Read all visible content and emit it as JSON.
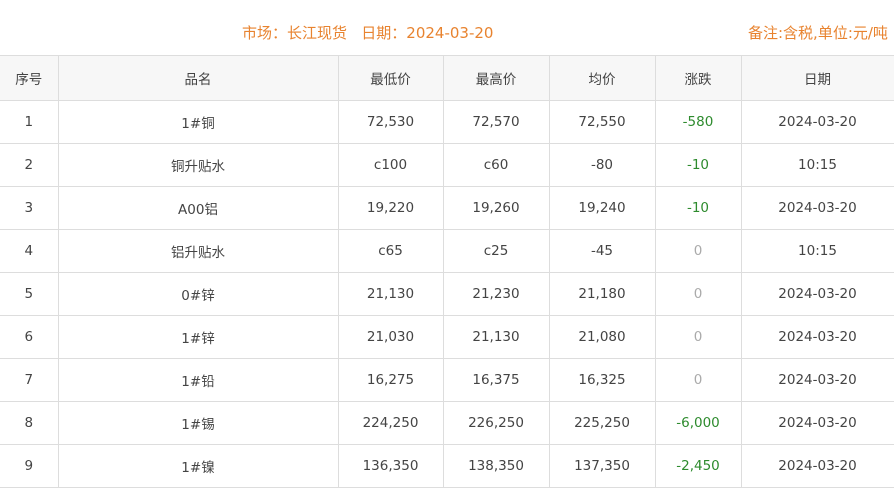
{
  "header": {
    "title": "市场：长江现货   日期：2024-03-20",
    "note": "备注:含税,单位:元/吨"
  },
  "table": {
    "columns": [
      "序号",
      "品名",
      "最低价",
      "最高价",
      "均价",
      "涨跌",
      "日期"
    ],
    "rows": [
      [
        "1",
        "1#铜",
        "72,530",
        "72,570",
        "72,550",
        "-580",
        "2024-03-20"
      ],
      [
        "2",
        "铜升贴水",
        "c100",
        "c60",
        "-80",
        "-10",
        "10:15"
      ],
      [
        "3",
        "A00铝",
        "19,220",
        "19,260",
        "19,240",
        "-10",
        "2024-03-20"
      ],
      [
        "4",
        "铝升贴水",
        "c65",
        "c25",
        "-45",
        "0",
        "10:15"
      ],
      [
        "5",
        "0#锌",
        "21,130",
        "21,230",
        "21,180",
        "0",
        "2024-03-20"
      ],
      [
        "6",
        "1#锌",
        "21,030",
        "21,130",
        "21,080",
        "0",
        "2024-03-20"
      ],
      [
        "7",
        "1#铅",
        "16,275",
        "16,375",
        "16,325",
        "0",
        "2024-03-20"
      ],
      [
        "8",
        "1#锡",
        "224,250",
        "226,250",
        "225,250",
        "-6,000",
        "2024-03-20"
      ],
      [
        "9",
        "1#镍",
        "136,350",
        "138,350",
        "137,350",
        "-2,450",
        "2024-03-20"
      ]
    ]
  },
  "colors": {
    "title": "#e8832f",
    "down": "#2e8b2e",
    "flat": "#aaaaaa"
  }
}
